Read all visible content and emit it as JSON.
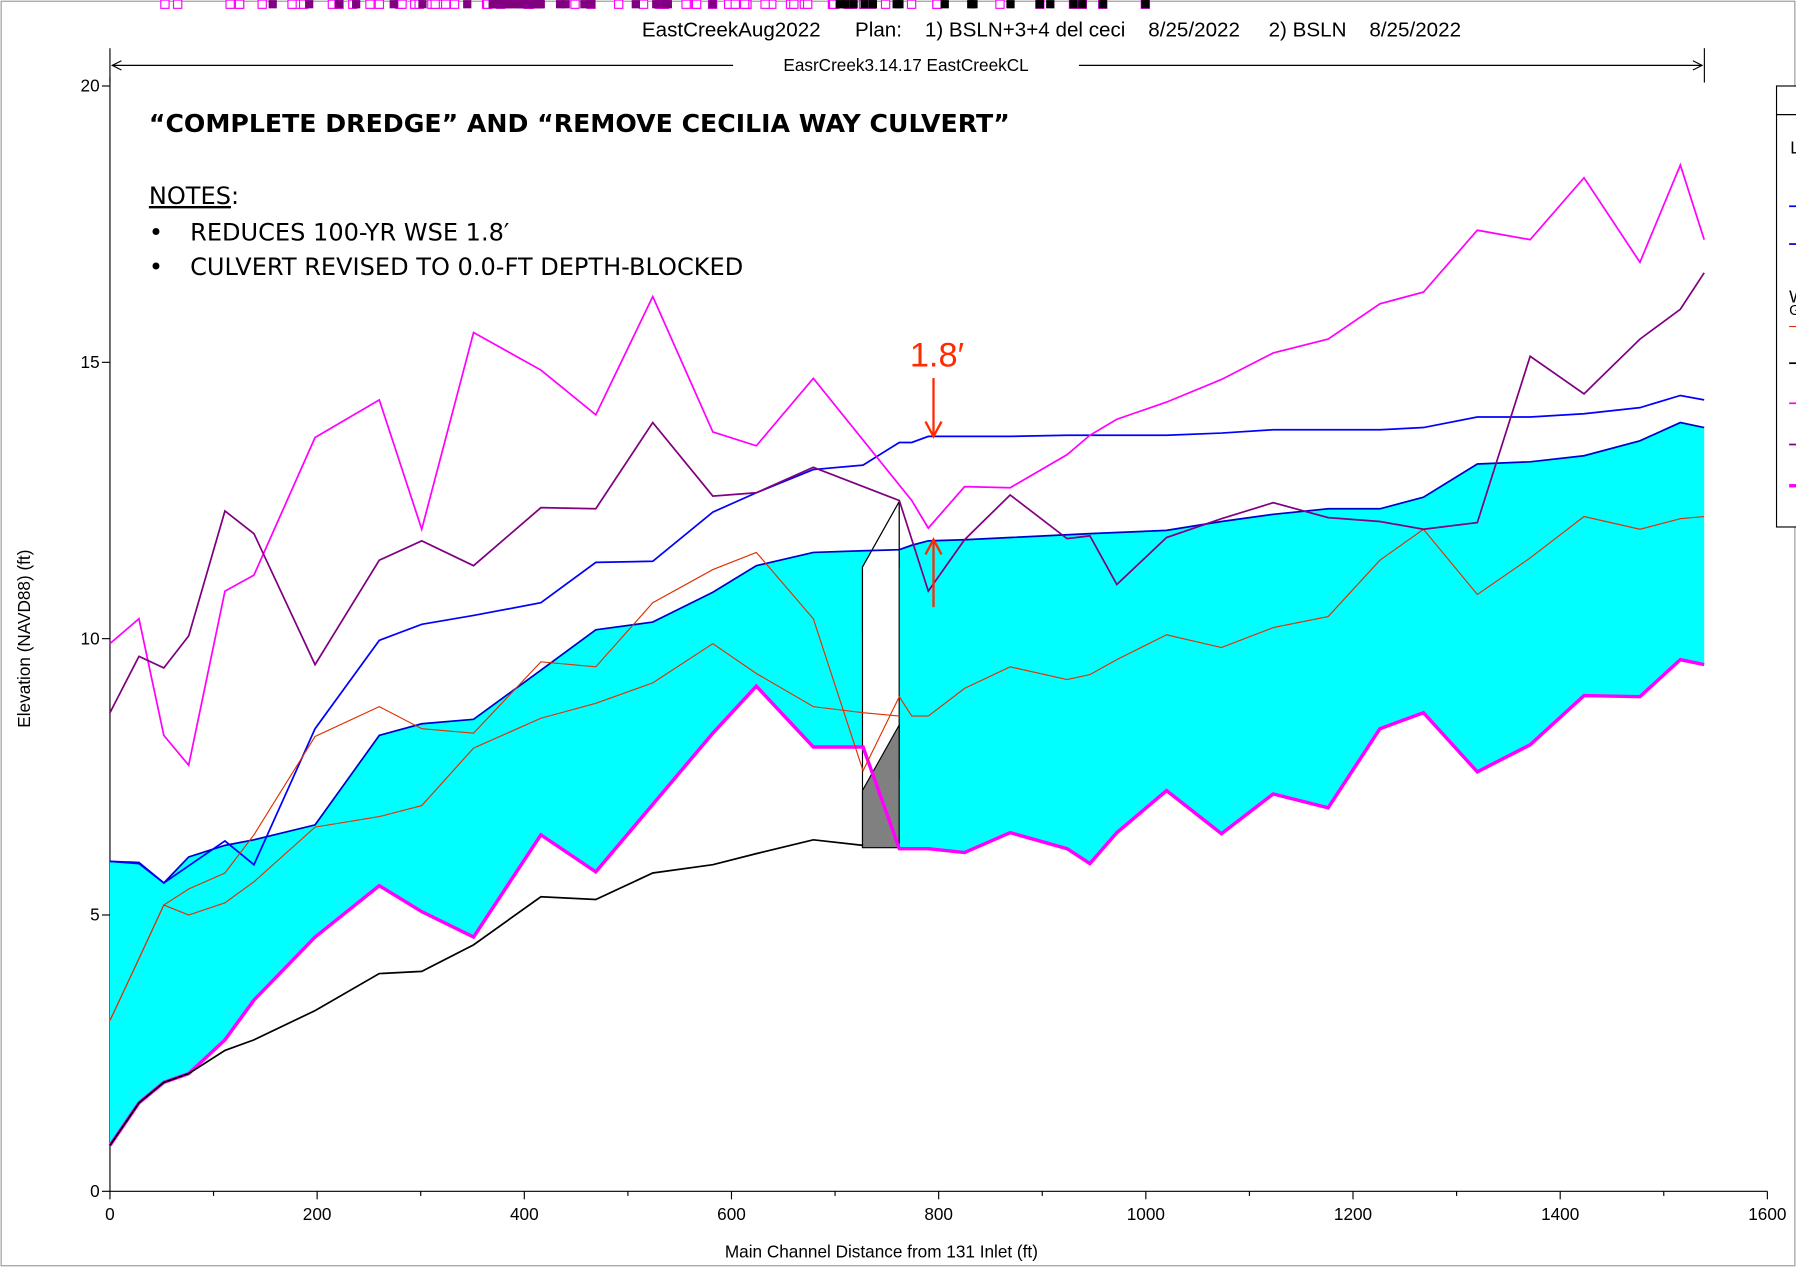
{
  "chart_data": {
    "type": "line",
    "title": "EastCreekAug2022      Plan:    1) BSLN+3+4 del ceci    8/25/2022     2) BSLN    8/25/2022",
    "reach_label": "EasrCreek3.14.17 EastCreekCL",
    "heading": "“COMPLETE DREDGE” AND “REMOVE CECILIA WAY CULVERT”",
    "notes_label": "NOTES",
    "notes_colon": ":",
    "notes": [
      "REDUCES 100-YR WSE 1.8′",
      "CULVERT REVISED TO 0.0-FT DEPTH-BLOCKED"
    ],
    "annotation": "1.8′",
    "annotation_color": "#ff2a00",
    "x_label": "Main Channel Distance from 131 Inlet (ft)",
    "y_label": "Elevation (NAVD88) (ft)",
    "xlim": [
      0,
      1600
    ],
    "xticks": [
      0,
      200,
      400,
      600,
      800,
      1000,
      1200,
      1400,
      1600
    ],
    "xminorticks": [
      100,
      300,
      500,
      700,
      900,
      1100,
      1300,
      1500
    ],
    "ylim": [
      0,
      20
    ],
    "yticks": [
      0,
      5,
      10,
      15,
      20
    ],
    "legend_text_fragments": [
      "L",
      "W",
      "G"
    ],
    "series": [
      {
        "color": "#0000cc",
        "marker": "none",
        "line_width": 1.5,
        "fill_color": "#00ffff",
        "fill_to_series": 1,
        "x": [
          0,
          28,
          52,
          76,
          111,
          139,
          198,
          260,
          301,
          351,
          416,
          469,
          524,
          582,
          624,
          679,
          727,
          762,
          774,
          790,
          825,
          869,
          924,
          946,
          972,
          1020,
          1073,
          1123,
          1176,
          1226,
          1268,
          1320,
          1371,
          1423,
          1477,
          1516,
          1539
        ],
        "values": [
          5.97,
          5.95,
          5.58,
          6.05,
          6.26,
          6.36,
          6.63,
          8.25,
          8.46,
          8.54,
          9.43,
          10.16,
          10.3,
          10.84,
          11.32,
          11.56,
          11.59,
          11.61,
          11.69,
          11.77,
          11.79,
          11.83,
          11.88,
          11.9,
          11.92,
          11.96,
          12.12,
          12.25,
          12.35,
          12.35,
          12.56,
          13.16,
          13.2,
          13.31,
          13.58,
          13.91,
          13.82
        ]
      },
      {
        "color": "#ff00ff",
        "marker": "open-square",
        "line_width": 3,
        "x": [
          0,
          28,
          52,
          76,
          111,
          139,
          198,
          260,
          301,
          351,
          416,
          469,
          524,
          582,
          624,
          679,
          727,
          762,
          774,
          790,
          825,
          869,
          924,
          946,
          972,
          1020,
          1073,
          1123,
          1176,
          1226,
          1268,
          1320,
          1371,
          1423,
          1477,
          1516,
          1539
        ],
        "values": [
          0.83,
          1.6,
          1.97,
          2.13,
          2.74,
          3.46,
          4.6,
          5.53,
          5.06,
          4.6,
          6.45,
          5.78,
          7.0,
          8.29,
          9.14,
          8.04,
          8.04,
          6.2,
          6.2,
          6.2,
          6.13,
          6.49,
          6.2,
          5.93,
          6.49,
          7.25,
          6.47,
          7.19,
          6.94,
          8.37,
          8.66,
          7.59,
          8.08,
          8.97,
          8.95,
          9.62,
          9.53
        ]
      },
      {
        "color": "#000000",
        "marker": "filled-square",
        "line_width": 1.5,
        "x": [
          0,
          28,
          52,
          76,
          111,
          139,
          198,
          260,
          301,
          351,
          416,
          469,
          524,
          582,
          624,
          679,
          727
        ],
        "values": [
          0.83,
          1.6,
          1.97,
          2.13,
          2.55,
          2.74,
          3.27,
          3.94,
          3.98,
          4.46,
          5.33,
          5.28,
          5.76,
          5.91,
          6.11,
          6.36,
          6.26
        ]
      },
      {
        "color": "#0000ff",
        "marker": "triangle",
        "line_width": 1.5,
        "x": [
          0,
          28,
          52,
          76,
          111,
          139,
          198,
          260,
          301,
          351,
          416,
          469,
          524,
          582,
          624,
          679,
          727,
          762,
          774,
          790,
          825,
          869,
          924,
          946,
          972,
          1020,
          1073,
          1123,
          1176,
          1226,
          1268,
          1320,
          1371,
          1423,
          1477,
          1516,
          1539
        ],
        "values": [
          5.97,
          5.93,
          5.58,
          5.89,
          6.34,
          5.91,
          8.37,
          9.97,
          10.26,
          10.42,
          10.65,
          11.38,
          11.4,
          12.29,
          12.64,
          13.06,
          13.14,
          13.55,
          13.55,
          13.66,
          13.66,
          13.66,
          13.68,
          13.68,
          13.68,
          13.68,
          13.72,
          13.78,
          13.78,
          13.78,
          13.82,
          14.01,
          14.01,
          14.07,
          14.18,
          14.4,
          14.32
        ]
      },
      {
        "color": "#e03000",
        "marker": "triangle",
        "line_width": 1,
        "x": [
          0,
          28,
          52,
          76,
          111,
          139,
          198,
          260,
          301,
          351,
          416,
          469,
          524,
          582,
          624,
          679,
          727,
          762,
          774,
          790,
          825,
          869,
          924,
          946,
          972,
          1020,
          1073,
          1123,
          1176,
          1226,
          1268,
          1320,
          1371,
          1423,
          1477,
          1516,
          1539
        ],
        "values": [
          3.09,
          4.21,
          5.18,
          5.47,
          5.76,
          6.45,
          8.23,
          8.77,
          8.37,
          8.29,
          9.58,
          9.49,
          10.65,
          11.25,
          11.56,
          10.36,
          7.61,
          8.95,
          8.6,
          8.6,
          9.1,
          9.49,
          9.26,
          9.35,
          9.62,
          10.07,
          9.84,
          10.2,
          10.4,
          11.42,
          11.98,
          10.8,
          11.46,
          12.21,
          11.98,
          12.17,
          12.21
        ]
      },
      {
        "color": "#e03000",
        "marker": "plus",
        "line_width": 1,
        "x": [
          0,
          28,
          52,
          76,
          111,
          139,
          198,
          260,
          301,
          351,
          416,
          469,
          524,
          582,
          624,
          679,
          727,
          762
        ],
        "values": [
          3.09,
          4.21,
          5.18,
          5.0,
          5.22,
          5.6,
          6.59,
          6.78,
          6.98,
          8.02,
          8.56,
          8.83,
          9.2,
          9.91,
          9.37,
          8.77,
          8.66,
          8.6
        ]
      },
      {
        "color": "#ff00ff",
        "marker": "open-square",
        "line_width": 1.5,
        "x": [
          0,
          28,
          52,
          76,
          111,
          139,
          198,
          260,
          301,
          351,
          416,
          469,
          524,
          582,
          624,
          679,
          774,
          790,
          825,
          869,
          924,
          946,
          972,
          1020,
          1073,
          1123,
          1176,
          1226,
          1268,
          1320,
          1371,
          1423,
          1477,
          1516,
          1539
        ],
        "values": [
          9.91,
          10.36,
          8.25,
          7.71,
          10.86,
          11.15,
          13.64,
          14.32,
          11.98,
          15.54,
          14.86,
          14.05,
          16.19,
          13.74,
          13.49,
          14.71,
          12.5,
          12.0,
          12.75,
          12.73,
          13.33,
          13.68,
          13.97,
          14.28,
          14.69,
          15.17,
          15.42,
          16.06,
          16.27,
          17.39,
          17.22,
          18.34,
          16.81,
          18.57,
          17.22
        ]
      },
      {
        "color": "#800080",
        "marker": "filled-square",
        "line_width": 1.5,
        "x": [
          0,
          28,
          52,
          76,
          111,
          139,
          198,
          260,
          301,
          351,
          416,
          469,
          524,
          582,
          624,
          679,
          762,
          790,
          825,
          869,
          924,
          946,
          972,
          1020,
          1073,
          1123,
          1176,
          1226,
          1268,
          1320,
          1371,
          1423,
          1477,
          1516,
          1539
        ],
        "values": [
          8.66,
          9.68,
          9.47,
          10.05,
          12.31,
          11.9,
          9.53,
          11.42,
          11.77,
          11.32,
          12.37,
          12.35,
          13.91,
          12.58,
          12.64,
          13.1,
          12.5,
          10.86,
          11.79,
          12.6,
          11.81,
          11.86,
          10.98,
          11.83,
          12.17,
          12.46,
          12.19,
          12.12,
          11.98,
          12.1,
          15.11,
          14.43,
          15.42,
          15.96,
          16.62
        ]
      }
    ]
  }
}
